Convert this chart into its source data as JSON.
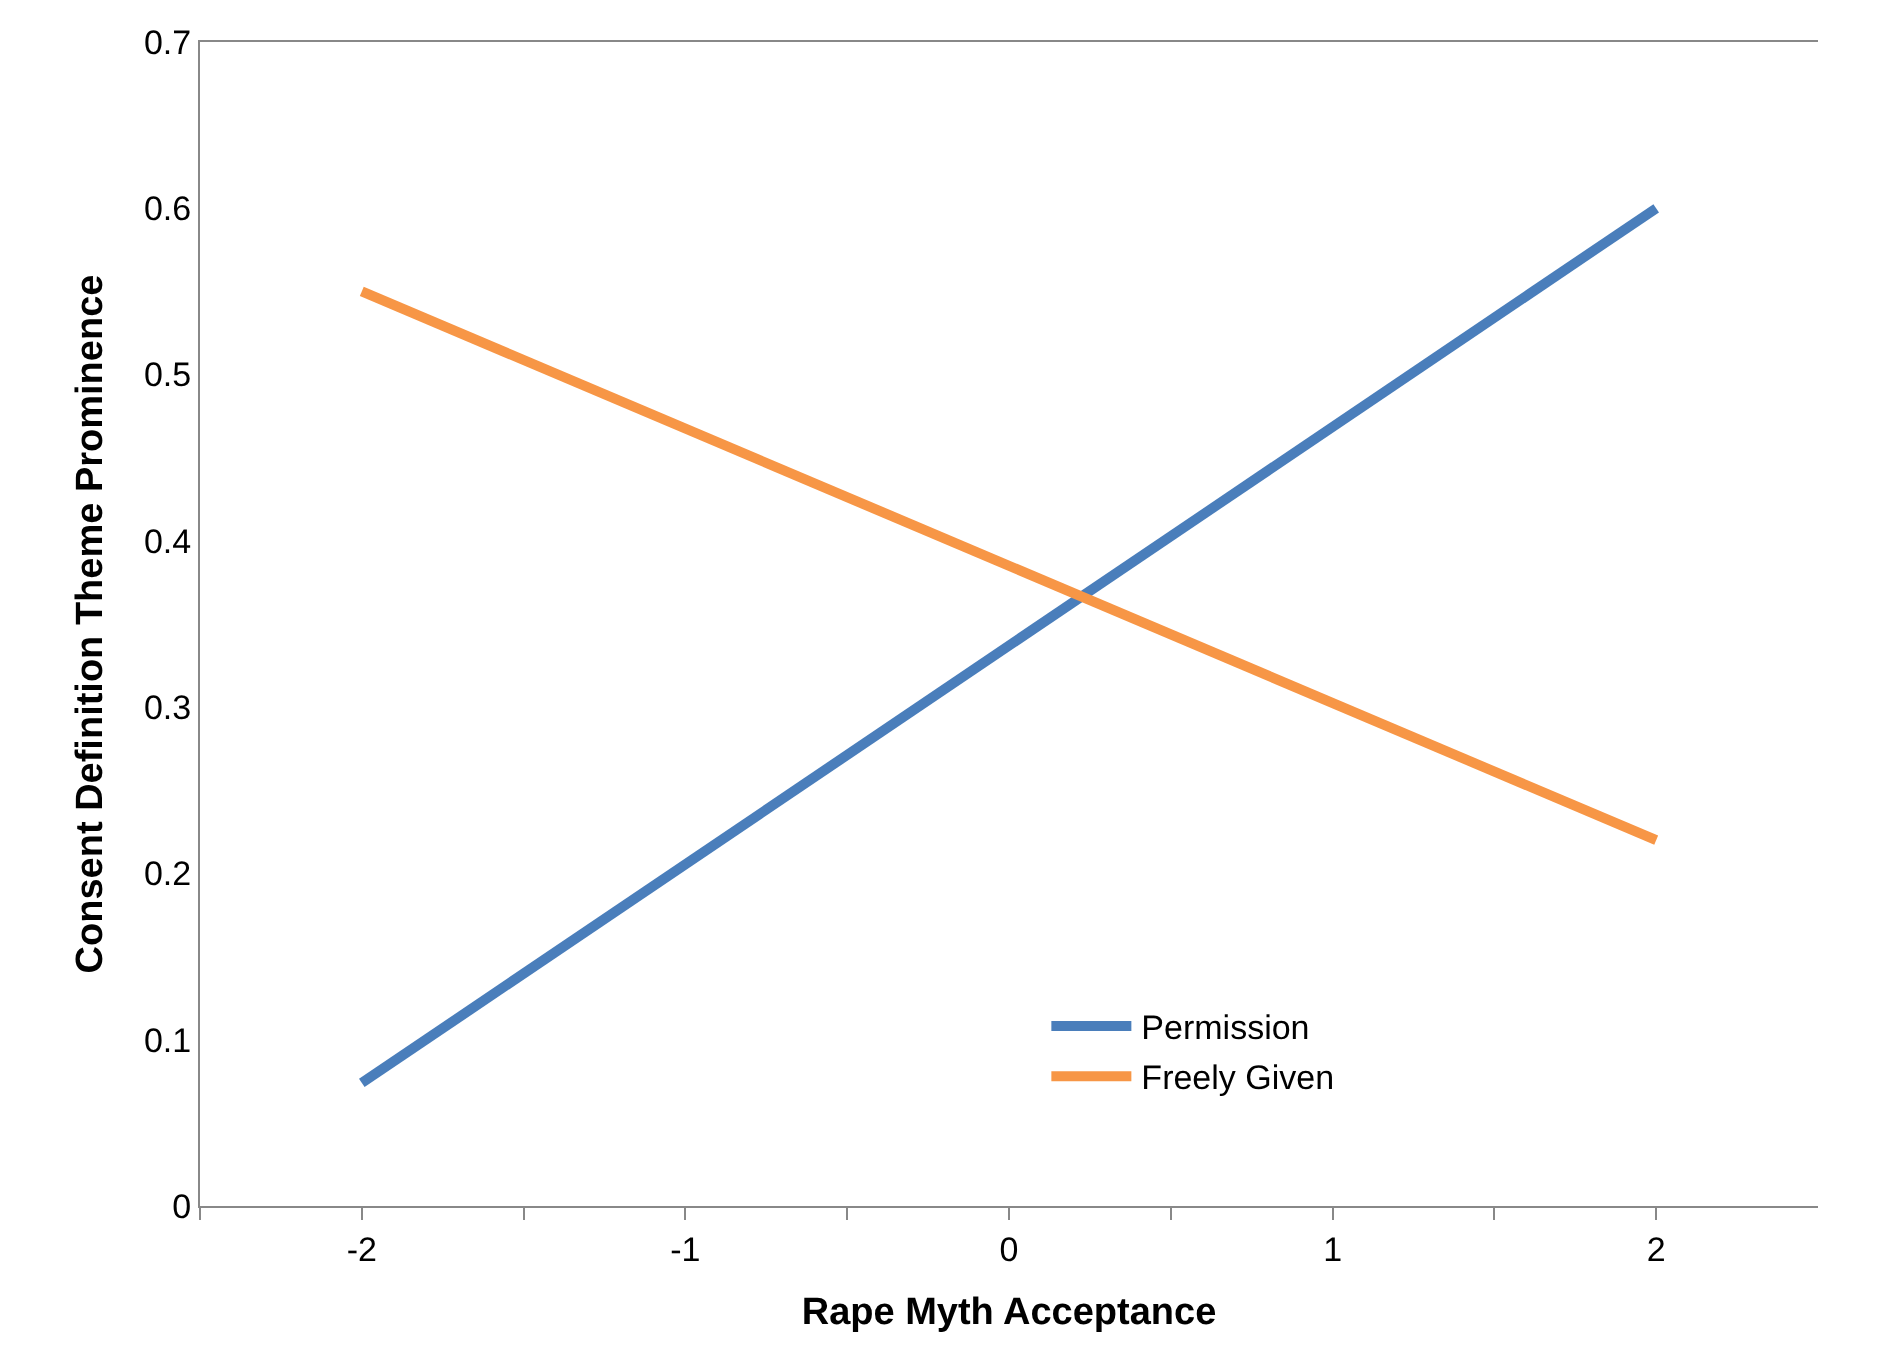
{
  "chart_data": {
    "type": "line",
    "xlabel": "Rape Myth Acceptance",
    "ylabel": "Consent Definition Theme Prominence",
    "x": [
      -2,
      2
    ],
    "series": [
      {
        "name": "Permission",
        "color": "#4a7ebb",
        "values": [
          0.074,
          0.6
        ]
      },
      {
        "name": "Freely Given",
        "color": "#f79646",
        "values": [
          0.55,
          0.22
        ]
      }
    ],
    "xlim": [
      -2.5,
      2.5
    ],
    "xticks": [
      {
        "value": -2.5,
        "label": null
      },
      -2,
      {
        "value": -1.5,
        "label": null
      },
      -1,
      {
        "value": -0.5,
        "label": null
      },
      0,
      {
        "value": 0.5,
        "label": null
      },
      1,
      {
        "value": 1.5,
        "label": null
      },
      2
    ],
    "ylim": [
      0,
      0.7
    ],
    "yticks": [
      0,
      0.1,
      0.2,
      0.3,
      0.4,
      0.5,
      0.6,
      0.7
    ],
    "legend": "bottom",
    "marker": "none",
    "line_style": "solid"
  }
}
